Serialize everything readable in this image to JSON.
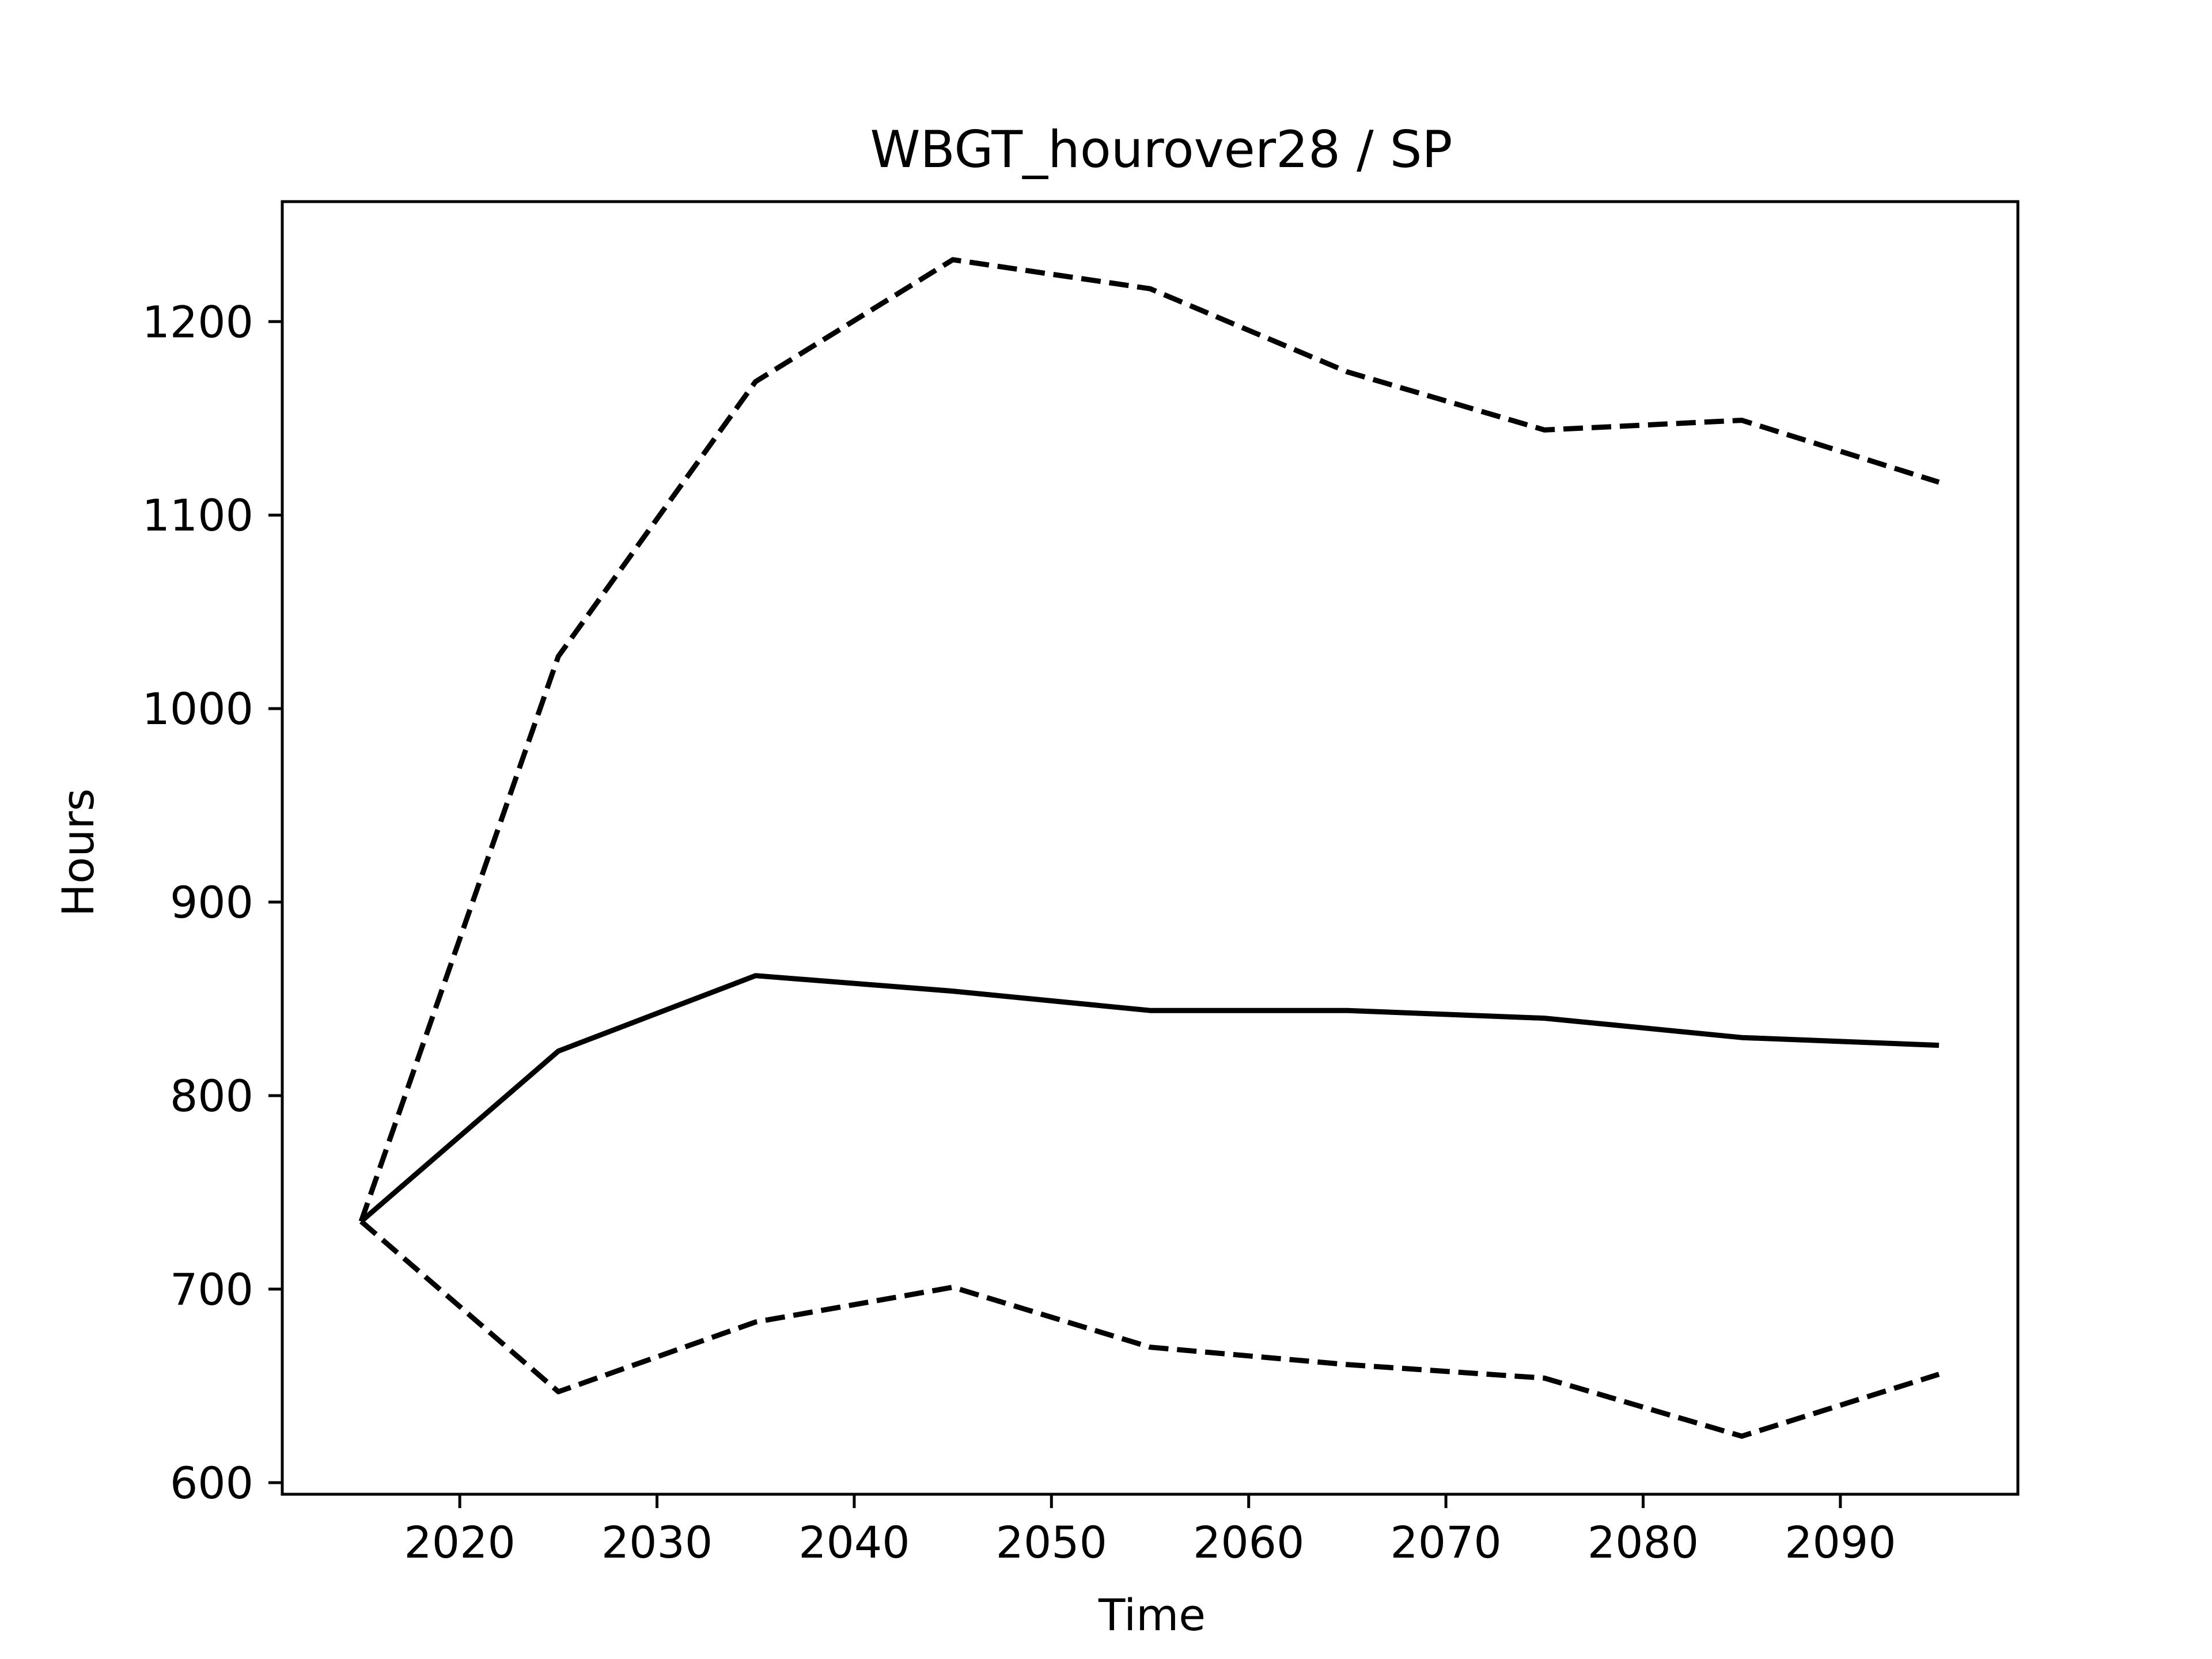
{
  "chart_data": {
    "type": "line",
    "title": "WBGT_hourover28 / SP",
    "xlabel": "Time",
    "ylabel": "Hours",
    "xlim": [
      2011,
      2099
    ],
    "ylim": [
      594,
      1262
    ],
    "xticks": [
      2020,
      2030,
      2040,
      2050,
      2060,
      2070,
      2080,
      2090
    ],
    "yticks": [
      600,
      700,
      800,
      900,
      1000,
      1100,
      1200
    ],
    "grid": false,
    "legend": "none",
    "x": [
      2015,
      2025,
      2035,
      2045,
      2055,
      2065,
      2075,
      2085,
      2095
    ],
    "series": [
      {
        "style": "dashed",
        "color": "#000000",
        "values": [
          735,
          1027,
          1169,
          1232,
          1217,
          1174,
          1144,
          1149,
          1117
        ]
      },
      {
        "style": "solid",
        "color": "#000000",
        "values": [
          735,
          823,
          862,
          854,
          844,
          844,
          840,
          830,
          826
        ]
      },
      {
        "style": "dashed",
        "color": "#000000",
        "values": [
          735,
          647,
          683,
          701,
          670,
          661,
          654,
          624,
          656
        ]
      }
    ]
  }
}
